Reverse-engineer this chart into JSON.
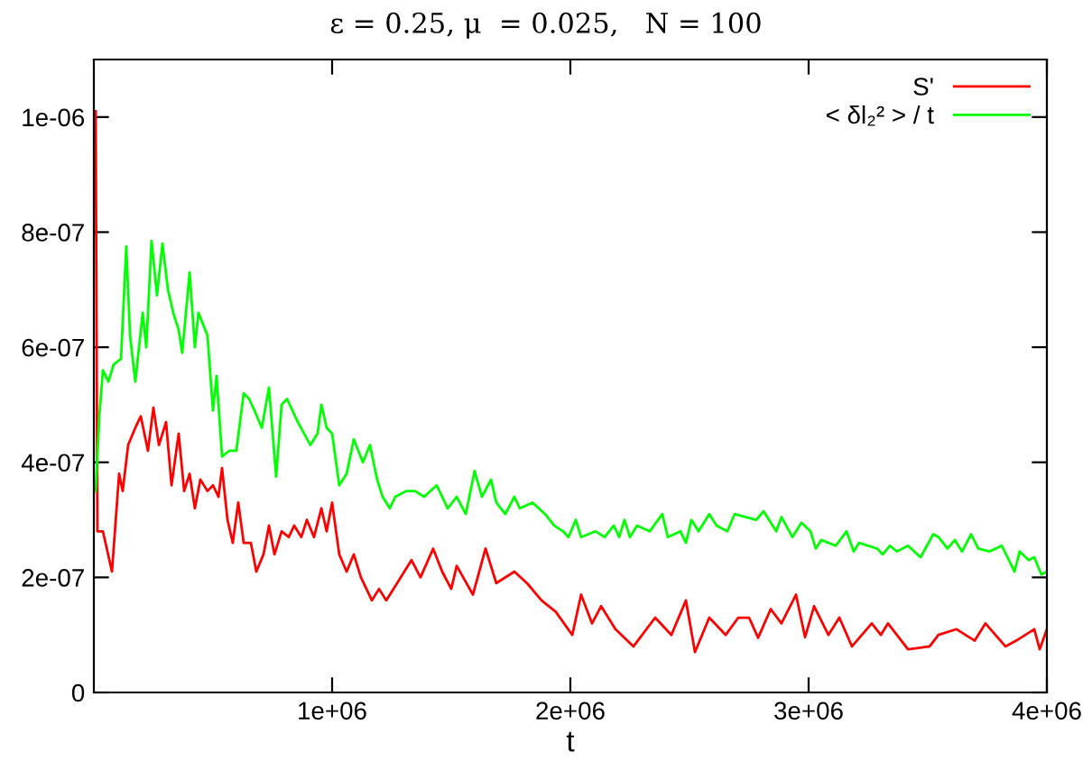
{
  "chart_data": {
    "type": "line",
    "title": "ε = 0.25, μ  = 0.025,   N = 100",
    "xlabel": "t",
    "xlim": [
      0,
      4000000
    ],
    "ylim": [
      0,
      1.1e-06
    ],
    "xticks": [
      {
        "value": 1000000,
        "label": "1e+06"
      },
      {
        "value": 2000000,
        "label": "2e+06"
      },
      {
        "value": 3000000,
        "label": "3e+06"
      },
      {
        "value": 4000000,
        "label": "4e+06"
      }
    ],
    "yticks": [
      {
        "value": 0,
        "label": "0"
      },
      {
        "value": 2e-07,
        "label": "2e-07"
      },
      {
        "value": 4e-07,
        "label": "4e-07"
      },
      {
        "value": 6e-07,
        "label": "6e-07"
      },
      {
        "value": 8e-07,
        "label": "8e-07"
      },
      {
        "value": 1e-06,
        "label": "1e-06"
      }
    ],
    "grid": false,
    "legend": "top right",
    "marker": "none",
    "line_style": "solid",
    "series": [
      {
        "name": "S'",
        "color": "#ff0000",
        "x": [
          7600,
          15000,
          38000,
          76000,
          106000,
          121000,
          144000,
          174000,
          197000,
          227000,
          250000,
          273000,
          303000,
          326000,
          356000,
          379000,
          402000,
          424000,
          447000,
          477000,
          500000,
          523000,
          538000,
          561000,
          583000,
          606000,
          629000,
          659000,
          682000,
          712000,
          735000,
          758000,
          788000,
          818000,
          841000,
          871000,
          894000,
          924000,
          955000,
          977000,
          1000000,
          1030000,
          1061000,
          1091000,
          1121000,
          1167000,
          1197000,
          1227000,
          1273000,
          1333000,
          1371000,
          1424000,
          1462000,
          1500000,
          1523000,
          1591000,
          1644000,
          1689000,
          1765000,
          1818000,
          1879000,
          1939000,
          2008000,
          2045000,
          2091000,
          2129000,
          2189000,
          2265000,
          2356000,
          2424000,
          2485000,
          2523000,
          2583000,
          2652000,
          2705000,
          2750000,
          2788000,
          2841000,
          2886000,
          2947000,
          2985000,
          3023000,
          3083000,
          3129000,
          3182000,
          3265000,
          3303000,
          3333000,
          3417000,
          3508000,
          3545000,
          3621000,
          3697000,
          3742000,
          3826000,
          3871000,
          3947000,
          3970000,
          4000000
        ],
        "values": [
          1.01e-06,
          2.8e-07,
          2.8e-07,
          2.1e-07,
          3.8e-07,
          3.5e-07,
          4.3e-07,
          4.6e-07,
          4.8e-07,
          4.2e-07,
          4.95e-07,
          4.3e-07,
          4.7e-07,
          3.6e-07,
          4.5e-07,
          3.5e-07,
          3.8e-07,
          3.2e-07,
          3.7e-07,
          3.5e-07,
          3.6e-07,
          3.4e-07,
          3.9e-07,
          3e-07,
          2.6e-07,
          3.3e-07,
          2.6e-07,
          2.6e-07,
          2.1e-07,
          2.4e-07,
          2.9e-07,
          2.4e-07,
          2.8e-07,
          2.7e-07,
          2.9e-07,
          2.7e-07,
          3e-07,
          2.7e-07,
          3.2e-07,
          2.8e-07,
          3.3e-07,
          2.4e-07,
          2.1e-07,
          2.4e-07,
          2e-07,
          1.6e-07,
          1.8e-07,
          1.6e-07,
          1.9e-07,
          2.3e-07,
          2e-07,
          2.5e-07,
          2.1e-07,
          1.8e-07,
          2.2e-07,
          1.7e-07,
          2.5e-07,
          1.9e-07,
          2.1e-07,
          1.9e-07,
          1.6e-07,
          1.4e-07,
          1e-07,
          1.7e-07,
          1.2e-07,
          1.5e-07,
          1.1e-07,
          8e-08,
          1.3e-07,
          1e-07,
          1.6e-07,
          7e-08,
          1.3e-07,
          1e-07,
          1.3e-07,
          1.3e-07,
          9.5e-08,
          1.45e-07,
          1.2e-07,
          1.7e-07,
          9.6e-08,
          1.5e-07,
          1e-07,
          1.3e-07,
          8e-08,
          1.2e-07,
          1e-07,
          1.2e-07,
          7.5e-08,
          8e-08,
          1e-07,
          1.1e-07,
          9e-08,
          1.2e-07,
          8e-08,
          9e-08,
          1.1e-07,
          7.5e-08,
          1.1e-07
        ]
      },
      {
        "name": "< δl₂² > / t",
        "color": "#00ff00",
        "x": [
          7600,
          23000,
          38000,
          61000,
          83000,
          114000,
          136000,
          152000,
          174000,
          205000,
          220000,
          242000,
          265000,
          288000,
          311000,
          333000,
          356000,
          371000,
          402000,
          424000,
          439000,
          477000,
          500000,
          515000,
          538000,
          568000,
          598000,
          629000,
          652000,
          674000,
          705000,
          735000,
          765000,
          788000,
          811000,
          856000,
          909000,
          939000,
          955000,
          977000,
          1000000,
          1030000,
          1061000,
          1091000,
          1129000,
          1159000,
          1189000,
          1212000,
          1242000,
          1265000,
          1311000,
          1348000,
          1386000,
          1439000,
          1485000,
          1523000,
          1561000,
          1598000,
          1629000,
          1667000,
          1689000,
          1727000,
          1765000,
          1788000,
          1841000,
          1894000,
          1932000,
          1970000,
          1992000,
          2023000,
          2045000,
          2106000,
          2144000,
          2182000,
          2205000,
          2227000,
          2250000,
          2280000,
          2333000,
          2386000,
          2409000,
          2462000,
          2485000,
          2508000,
          2538000,
          2583000,
          2614000,
          2659000,
          2689000,
          2735000,
          2780000,
          2811000,
          2864000,
          2886000,
          2932000,
          2970000,
          3008000,
          3030000,
          3053000,
          3114000,
          3159000,
          3189000,
          3212000,
          3288000,
          3311000,
          3341000,
          3371000,
          3417000,
          3470000,
          3523000,
          3545000,
          3583000,
          3614000,
          3644000,
          3682000,
          3712000,
          3758000,
          3811000,
          3864000,
          3886000,
          3924000,
          3947000,
          3977000,
          4000000
        ],
        "values": [
          3.5e-07,
          4.8e-07,
          5.6e-07,
          5.4e-07,
          5.7e-07,
          5.8e-07,
          7.75e-07,
          6.2e-07,
          5.4e-07,
          6.6e-07,
          6e-07,
          7.85e-07,
          6.9e-07,
          7.8e-07,
          7e-07,
          6.6e-07,
          6.3e-07,
          5.9e-07,
          7.3e-07,
          6e-07,
          6.6e-07,
          6.2e-07,
          4.9e-07,
          5.5e-07,
          4.1e-07,
          4.2e-07,
          4.2e-07,
          5.2e-07,
          5.1e-07,
          4.9e-07,
          4.6e-07,
          5.3e-07,
          3.75e-07,
          5e-07,
          5.1e-07,
          4.7e-07,
          4.3e-07,
          4.5e-07,
          5e-07,
          4.6e-07,
          4.5e-07,
          3.6e-07,
          3.8e-07,
          4.4e-07,
          4e-07,
          4.3e-07,
          3.7e-07,
          3.4e-07,
          3.2e-07,
          3.4e-07,
          3.5e-07,
          3.5e-07,
          3.4e-07,
          3.6e-07,
          3.2e-07,
          3.4e-07,
          3.1e-07,
          3.85e-07,
          3.4e-07,
          3.7e-07,
          3.3e-07,
          3.1e-07,
          3.4e-07,
          3.2e-07,
          3.3e-07,
          3.1e-07,
          2.9e-07,
          2.8e-07,
          2.7e-07,
          3e-07,
          2.7e-07,
          2.8e-07,
          2.7e-07,
          2.9e-07,
          2.7e-07,
          3e-07,
          2.7e-07,
          2.9e-07,
          2.8e-07,
          3.1e-07,
          2.7e-07,
          2.8e-07,
          2.6e-07,
          3e-07,
          2.8e-07,
          3.1e-07,
          2.9e-07,
          2.8e-07,
          3.1e-07,
          3.05e-07,
          3e-07,
          3.15e-07,
          2.8e-07,
          3.05e-07,
          2.7e-07,
          2.95e-07,
          2.8e-07,
          2.5e-07,
          2.65e-07,
          2.55e-07,
          2.8e-07,
          2.45e-07,
          2.6e-07,
          2.5e-07,
          2.4e-07,
          2.55e-07,
          2.45e-07,
          2.55e-07,
          2.35e-07,
          2.75e-07,
          2.7e-07,
          2.5e-07,
          2.65e-07,
          2.45e-07,
          2.75e-07,
          2.5e-07,
          2.45e-07,
          2.55e-07,
          2.1e-07,
          2.45e-07,
          2.3e-07,
          2.35e-07,
          2.05e-07,
          2.1e-07
        ]
      }
    ]
  }
}
